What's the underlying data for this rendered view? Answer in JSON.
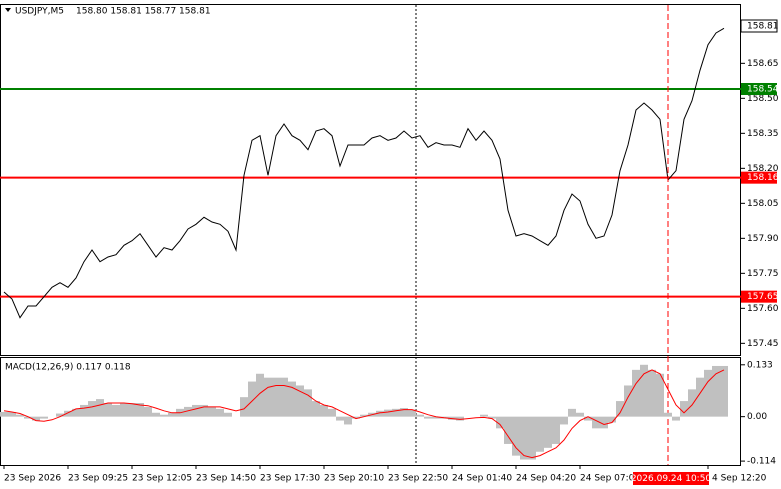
{
  "chart_data": [
    {
      "type": "line",
      "title": "USDJPY,M5",
      "subtitle": "158.80 158.81 158.77 158.81",
      "color": "#000000",
      "categories": [
        "23 Sep 2026",
        null,
        null,
        null,
        null,
        null,
        null,
        null,
        "23 Sep 09:25",
        null,
        null,
        null,
        null,
        null,
        null,
        null,
        "23 Sep 12:05",
        null,
        null,
        null,
        null,
        null,
        null,
        null,
        "23 Sep 14:50",
        null,
        null,
        null,
        null,
        null,
        null,
        null,
        "23 Sep 17:30",
        null,
        null,
        null,
        null,
        null,
        null,
        null,
        "23 Sep 20:10",
        null,
        null,
        null,
        null,
        null,
        null,
        null,
        "23 Sep 22:50",
        null,
        null,
        null,
        null,
        null,
        null,
        null,
        "24 Sep 01:40",
        null,
        null,
        null,
        null,
        null,
        null,
        null,
        "24 Sep 04:20",
        null,
        null,
        null,
        null,
        null,
        null,
        null,
        "24 Sep 07:00",
        null,
        null,
        null,
        null,
        null,
        null,
        null,
        null,
        null,
        null,
        "2026.09.24 10:50",
        null,
        null,
        null,
        null,
        "4 Sep 12:20",
        null,
        null
      ],
      "values": [
        157.67,
        157.64,
        157.56,
        157.61,
        157.61,
        157.65,
        157.69,
        157.71,
        157.69,
        157.73,
        157.8,
        157.85,
        157.8,
        157.82,
        157.83,
        157.87,
        157.89,
        157.92,
        157.87,
        157.82,
        157.86,
        157.85,
        157.89,
        157.94,
        157.96,
        157.99,
        157.97,
        157.96,
        157.93,
        157.85,
        158.17,
        158.32,
        158.34,
        158.17,
        158.34,
        158.39,
        158.34,
        158.32,
        158.28,
        158.36,
        158.37,
        158.34,
        158.21,
        158.3,
        158.3,
        158.3,
        158.33,
        158.34,
        158.32,
        158.33,
        158.36,
        158.33,
        158.34,
        158.29,
        158.31,
        158.3,
        158.3,
        158.29,
        158.37,
        158.32,
        158.36,
        158.32,
        158.24,
        158.02,
        157.91,
        157.92,
        157.91,
        157.89,
        157.87,
        157.91,
        158.02,
        158.09,
        158.06,
        157.96,
        157.9,
        157.91,
        158,
        158.19,
        158.3,
        158.45,
        158.48,
        158.45,
        158.41,
        158.15,
        158.19,
        158.41,
        158.49,
        158.62,
        158.73,
        158.78,
        158.8
      ],
      "ylim": [
        157.4,
        158.9
      ],
      "yticks": [
        157.45,
        {
          "value": 157.6,
          "label": "157.60"
        },
        157.75,
        {
          "value": 157.9,
          "label": "157.90"
        },
        158.05,
        {
          "value": 158.2,
          "label": "158.20"
        },
        158.35,
        {
          "value": 158.5,
          "label": "158.50"
        },
        158.65
      ],
      "levels": [
        {
          "value": 158.54,
          "color": "#008000"
        },
        {
          "value": 158.16,
          "color": "#ff0000"
        },
        {
          "value": 157.65,
          "color": "#ff0000"
        }
      ],
      "last_price": 158.81,
      "crosshair_category": 83,
      "crosshair_color": "#ff0000"
    },
    {
      "type": "macd",
      "title": "MACD(12,26,9) 0.117 0.118",
      "color": "#c0c0c0",
      "signal_color": "#ff0000",
      "values": [
        0.012,
        0.012,
        0.005,
        -0.005,
        -0.01,
        -0.005,
        0,
        0.008,
        0.015,
        0.02,
        0.03,
        0.04,
        0.045,
        0.035,
        0.03,
        0.035,
        0.035,
        0.035,
        0.025,
        0.01,
        0.005,
        0.01,
        0.02,
        0.025,
        0.03,
        0.03,
        0.025,
        0.02,
        0.01,
        0,
        0.05,
        0.09,
        0.11,
        0.1,
        0.1,
        0.1,
        0.09,
        0.08,
        0.07,
        0.04,
        0.03,
        0.02,
        -0.01,
        -0.02,
        -0.005,
        0.005,
        0.01,
        0.015,
        0.018,
        0.02,
        0.022,
        0.018,
        0.005,
        -0.005,
        -0.005,
        -0.005,
        -0.008,
        -0.01,
        0,
        0,
        0.005,
        -0.005,
        -0.03,
        -0.07,
        -0.1,
        -0.11,
        -0.11,
        -0.09,
        -0.08,
        -0.07,
        -0.02,
        0.02,
        0.01,
        -0.01,
        -0.03,
        -0.03,
        -0.015,
        0.04,
        0.08,
        0.12,
        0.133,
        0.12,
        0.11,
        0.01,
        -0.01,
        0.04,
        0.07,
        0.1,
        0.12,
        0.13,
        0.13
      ],
      "signal": [
        0.015,
        0.012,
        0.008,
        0,
        -0.01,
        -0.012,
        -0.008,
        0,
        0.01,
        0.02,
        0.022,
        0.025,
        0.03,
        0.035,
        0.035,
        0.035,
        0.033,
        0.03,
        0.028,
        0.022,
        0.015,
        0.01,
        0.01,
        0.015,
        0.02,
        0.025,
        0.025,
        0.025,
        0.02,
        0.015,
        0.02,
        0.04,
        0.06,
        0.075,
        0.08,
        0.08,
        0.075,
        0.065,
        0.055,
        0.04,
        0.03,
        0.025,
        0.015,
        0.005,
        -0.005,
        0,
        0.005,
        0.01,
        0.012,
        0.015,
        0.018,
        0.018,
        0.012,
        0.005,
        0,
        -0.003,
        -0.005,
        -0.007,
        -0.005,
        -0.003,
        -0.002,
        -0.005,
        -0.02,
        -0.05,
        -0.08,
        -0.1,
        -0.105,
        -0.1,
        -0.09,
        -0.08,
        -0.06,
        -0.03,
        -0.01,
        0,
        -0.01,
        -0.02,
        -0.015,
        0.01,
        0.05,
        0.085,
        0.11,
        0.12,
        0.11,
        0.07,
        0.03,
        0.01,
        0.03,
        0.06,
        0.09,
        0.11,
        0.12
      ],
      "ylim": [
        -0.124,
        0.153
      ],
      "yticks": [
        0.133,
        {
          "value": 0,
          "label": "0.00"
        },
        -0.114
      ]
    }
  ]
}
